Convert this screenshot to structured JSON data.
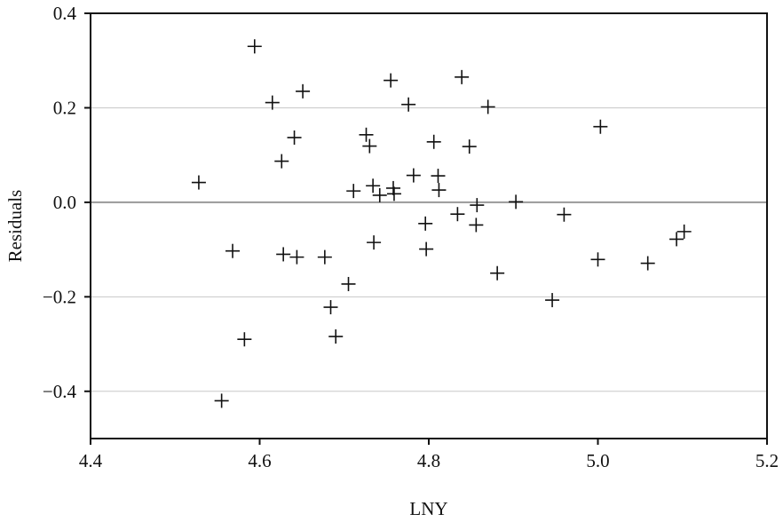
{
  "chart_data": {
    "type": "scatter",
    "title": "",
    "xlabel": "LNY",
    "ylabel": "Residuals",
    "xlim": [
      4.4,
      5.2
    ],
    "ylim": [
      -0.5,
      0.4
    ],
    "xticks": [
      4.4,
      4.6,
      4.8,
      5.0,
      5.2
    ],
    "xtick_labels": [
      "4.4",
      "4.6",
      "4.8",
      "5.0",
      "5.2"
    ],
    "yticks": [
      -0.4,
      -0.2,
      0.0,
      0.2,
      0.4
    ],
    "ytick_labels": [
      "−0.4",
      "−0.2",
      "0.0",
      "0.2",
      "0.4"
    ],
    "grid": "horizontal",
    "zero_line": true,
    "marker": "plus",
    "colors": {
      "marker": "#111111",
      "grid": "#c8c8c8",
      "zero_line": "#999999",
      "axis": "#111111"
    },
    "series": [
      {
        "points": [
          {
            "x": 4.528,
            "y": 0.042
          },
          {
            "x": 4.555,
            "y": -0.42
          },
          {
            "x": 4.568,
            "y": -0.103
          },
          {
            "x": 4.582,
            "y": -0.29
          },
          {
            "x": 4.594,
            "y": 0.33
          },
          {
            "x": 4.615,
            "y": 0.211
          },
          {
            "x": 4.626,
            "y": 0.087
          },
          {
            "x": 4.628,
            "y": -0.11
          },
          {
            "x": 4.641,
            "y": 0.137
          },
          {
            "x": 4.644,
            "y": -0.116
          },
          {
            "x": 4.651,
            "y": 0.235
          },
          {
            "x": 4.677,
            "y": -0.116
          },
          {
            "x": 4.684,
            "y": -0.222
          },
          {
            "x": 4.69,
            "y": -0.284
          },
          {
            "x": 4.705,
            "y": -0.173
          },
          {
            "x": 4.711,
            "y": 0.024
          },
          {
            "x": 4.726,
            "y": 0.143
          },
          {
            "x": 4.73,
            "y": 0.119
          },
          {
            "x": 4.734,
            "y": 0.035
          },
          {
            "x": 4.735,
            "y": -0.085
          },
          {
            "x": 4.742,
            "y": 0.015
          },
          {
            "x": 4.755,
            "y": 0.258
          },
          {
            "x": 4.758,
            "y": 0.03
          },
          {
            "x": 4.759,
            "y": 0.018
          },
          {
            "x": 4.776,
            "y": 0.207
          },
          {
            "x": 4.782,
            "y": 0.057
          },
          {
            "x": 4.796,
            "y": -0.045
          },
          {
            "x": 4.797,
            "y": -0.099
          },
          {
            "x": 4.806,
            "y": 0.128
          },
          {
            "x": 4.811,
            "y": 0.056
          },
          {
            "x": 4.812,
            "y": 0.026
          },
          {
            "x": 4.834,
            "y": -0.025
          },
          {
            "x": 4.839,
            "y": 0.265
          },
          {
            "x": 4.848,
            "y": 0.118
          },
          {
            "x": 4.856,
            "y": -0.048
          },
          {
            "x": 4.857,
            "y": -0.006
          },
          {
            "x": 4.87,
            "y": 0.202
          },
          {
            "x": 4.881,
            "y": -0.15
          },
          {
            "x": 4.903,
            "y": 0.001
          },
          {
            "x": 4.946,
            "y": -0.207
          },
          {
            "x": 4.96,
            "y": -0.026
          },
          {
            "x": 5.0,
            "y": -0.121
          },
          {
            "x": 5.003,
            "y": 0.16
          },
          {
            "x": 5.059,
            "y": -0.129
          },
          {
            "x": 5.093,
            "y": -0.078
          },
          {
            "x": 5.102,
            "y": -0.062
          }
        ]
      }
    ]
  }
}
